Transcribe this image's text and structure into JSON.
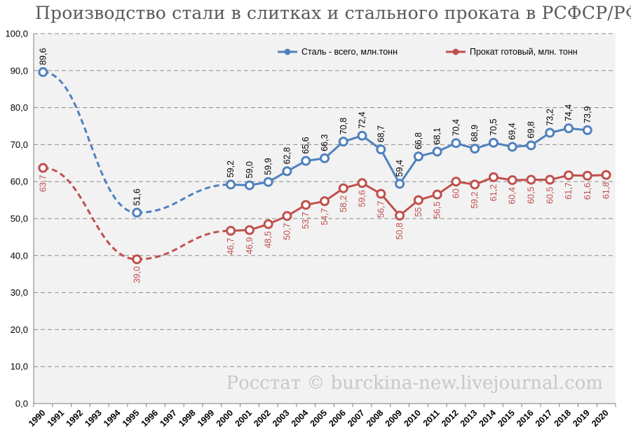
{
  "title": "Производство стали в слитках и стального проката в РСФСР/РФ",
  "watermark": "Росстат © burckina-new.livejournal.com",
  "chart_data": {
    "type": "line",
    "categories": [
      "1990",
      "1991",
      "1992",
      "1993",
      "1994",
      "1995",
      "1996",
      "1997",
      "1998",
      "1999",
      "2000",
      "2001",
      "2002",
      "2003",
      "2004",
      "2005",
      "2006",
      "2007",
      "2008",
      "2009",
      "2010",
      "2011",
      "2012",
      "2013",
      "2014",
      "2015",
      "2016",
      "2017",
      "2018",
      "2019",
      "2020"
    ],
    "ylim": [
      0,
      100
    ],
    "yticks": [
      "0,0",
      "10,0",
      "20,0",
      "30,0",
      "40,0",
      "50,0",
      "60,0",
      "70,0",
      "80,0",
      "90,0",
      "100,0"
    ],
    "grid": true,
    "legend_position": "top-right",
    "series": [
      {
        "name": "Сталь - всего, млн.тонн",
        "color": "#4f81bd",
        "values": [
          89.6,
          null,
          null,
          null,
          null,
          51.6,
          null,
          null,
          null,
          null,
          59.2,
          59.0,
          59.9,
          62.8,
          65.6,
          66.3,
          70.8,
          72.4,
          68.7,
          59.4,
          66.8,
          68.1,
          70.4,
          68.9,
          70.5,
          69.4,
          69.8,
          73.2,
          74.4,
          73.9,
          null
        ],
        "labels": [
          "89,6",
          null,
          null,
          null,
          null,
          "51,6",
          null,
          null,
          null,
          null,
          "59,2",
          "59,0",
          "59,9",
          "62,8",
          "65,6",
          "66,3",
          "70,8",
          "72,4",
          "68,7",
          "59,4",
          "66,8",
          "68,1",
          "70,4",
          "68,9",
          "70,5",
          "69,4",
          "69,8",
          "73,2",
          "74,4",
          "73,9",
          null
        ]
      },
      {
        "name": "Прокат готовый, млн. тонн",
        "color": "#c0504d",
        "values": [
          63.7,
          null,
          null,
          null,
          null,
          39.0,
          null,
          null,
          null,
          null,
          46.7,
          46.9,
          48.5,
          50.7,
          53.7,
          54.7,
          58.2,
          59.6,
          56.7,
          50.8,
          55.0,
          56.5,
          60.0,
          59.2,
          61.2,
          60.4,
          60.5,
          60.5,
          61.7,
          61.6,
          61.8
        ],
        "labels": [
          "63,7",
          null,
          null,
          null,
          null,
          "39,0",
          null,
          null,
          null,
          null,
          "46,7",
          "46,9",
          "48,5",
          "50,7",
          "53,7",
          "54,7",
          "58,2",
          "59,6",
          "56,7",
          "50,8",
          "55",
          "56,5",
          "60",
          "59,2",
          "61,2",
          "60,4",
          "60,5",
          "60,5",
          "61,7",
          "61,6",
          "61,8"
        ]
      }
    ]
  }
}
